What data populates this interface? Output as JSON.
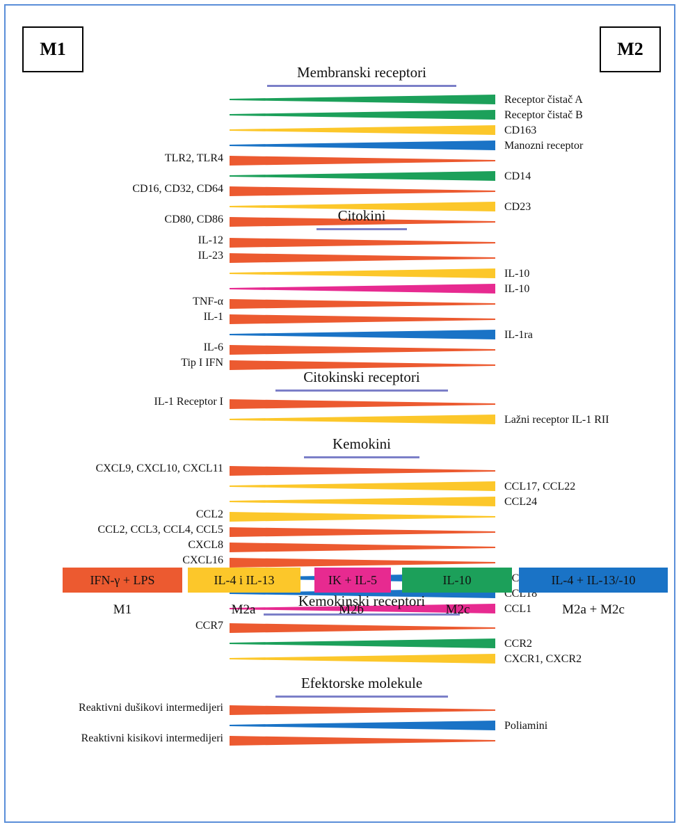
{
  "corners": {
    "left": "M1",
    "right": "M2"
  },
  "colors": {
    "red": "#ec5a30",
    "yellow": "#fcc72a",
    "green": "#1ca05a",
    "blue": "#1a73c6",
    "magenta": "#e72a90"
  },
  "sections": [
    {
      "title": "Membranski receptori",
      "bars": [
        {
          "color": "green",
          "dir": "M2",
          "left": "",
          "right": "Receptor čistač A"
        },
        {
          "color": "green",
          "dir": "M2",
          "left": "",
          "right": "Receptor čistač B"
        },
        {
          "color": "yellow",
          "dir": "M2",
          "left": "",
          "right": "CD163"
        },
        {
          "color": "blue",
          "dir": "M2",
          "left": "",
          "right": "Manozni receptor"
        },
        {
          "color": "red",
          "dir": "M1",
          "left": "TLR2, TLR4",
          "right": ""
        },
        {
          "color": "green",
          "dir": "M2",
          "left": "",
          "right": "CD14"
        },
        {
          "color": "red",
          "dir": "M1",
          "left": "CD16, CD32, CD64",
          "right": ""
        },
        {
          "color": "yellow",
          "dir": "M2",
          "left": "",
          "right": "CD23"
        },
        {
          "color": "red",
          "dir": "M1",
          "left": "CD80, CD86",
          "right": ""
        }
      ]
    },
    {
      "title": "Citokini",
      "bars": [
        {
          "color": "red",
          "dir": "M1",
          "left": "IL-12",
          "right": ""
        },
        {
          "color": "red",
          "dir": "M1",
          "left": "IL-23",
          "right": ""
        },
        {
          "color": "yellow",
          "dir": "M2",
          "left": "",
          "right": "IL-10"
        },
        {
          "color": "magenta",
          "dir": "M2",
          "left": "",
          "right": "IL-10"
        },
        {
          "color": "red",
          "dir": "M1",
          "left": "TNF-α",
          "right": ""
        },
        {
          "color": "red",
          "dir": "M1",
          "left": "IL-1",
          "right": ""
        },
        {
          "color": "blue",
          "dir": "M2",
          "left": "",
          "right": "IL-1ra"
        },
        {
          "color": "red",
          "dir": "M1",
          "left": "IL-6",
          "right": ""
        },
        {
          "color": "red",
          "dir": "M1",
          "left": "Tip I IFN",
          "right": ""
        }
      ]
    },
    {
      "title": "Citokinski receptori",
      "bars": [
        {
          "color": "red",
          "dir": "M1",
          "left": "IL-1 Receptor I",
          "right": ""
        },
        {
          "color": "yellow",
          "dir": "M2",
          "left": "",
          "right": "Lažni receptor IL-1 RII"
        }
      ]
    },
    {
      "title": "Kemokini",
      "bars": [
        {
          "color": "red",
          "dir": "M1",
          "left": "CXCL9, CXCL10, CXCL11",
          "right": ""
        },
        {
          "color": "yellow",
          "dir": "M2",
          "left": "",
          "right": "CCL17, CCL22"
        },
        {
          "color": "yellow",
          "dir": "M2",
          "left": "",
          "right": "CCL24"
        },
        {
          "color": "yellow",
          "dir": "M1",
          "left": "CCL2",
          "right": ""
        },
        {
          "color": "red",
          "dir": "M1",
          "left": "CCL2, CCL3, CCL4, CCL5",
          "right": ""
        },
        {
          "color": "red",
          "dir": "M1",
          "left": "CXCL8",
          "right": ""
        },
        {
          "color": "red",
          "dir": "M1",
          "left": "CXCL16",
          "right": ""
        },
        {
          "color": "blue",
          "dir": "M2",
          "left": "",
          "right": "CCL16"
        },
        {
          "color": "blue",
          "dir": "M2",
          "left": "",
          "right": "CCL18"
        },
        {
          "color": "magenta",
          "dir": "M2",
          "left": "",
          "right": "CCL1"
        }
      ]
    },
    {
      "title": "Kemokinski receptori",
      "bars": [
        {
          "color": "red",
          "dir": "M1",
          "left": "CCR7",
          "right": ""
        },
        {
          "color": "green",
          "dir": "M2",
          "left": "",
          "right": "CCR2"
        },
        {
          "color": "yellow",
          "dir": "M2",
          "left": "",
          "right": "CXCR1, CXCR2"
        }
      ]
    },
    {
      "title": "Efektorske molekule",
      "bars": [
        {
          "color": "red",
          "dir": "M1",
          "left": "Reaktivni dušikovi intermedijeri",
          "right": ""
        },
        {
          "color": "blue",
          "dir": "M2",
          "left": "",
          "right": "Poliamini"
        },
        {
          "color": "red",
          "dir": "M1",
          "left": "Reaktivni kisikovi intermedijeri",
          "right": ""
        }
      ]
    }
  ],
  "legend": [
    {
      "color": "red",
      "text": "IFN-γ + LPS",
      "caption": "M1"
    },
    {
      "color": "yellow",
      "text": "IL-4 i IL-13",
      "caption": "M2a"
    },
    {
      "color": "magenta",
      "text": "IK + IL-5",
      "caption": "M2b"
    },
    {
      "color": "green",
      "text": "IL-10",
      "caption": "M2c"
    },
    {
      "color": "blue",
      "text": "IL-4 + IL-13/-10",
      "caption": "M2a + M2c"
    }
  ]
}
